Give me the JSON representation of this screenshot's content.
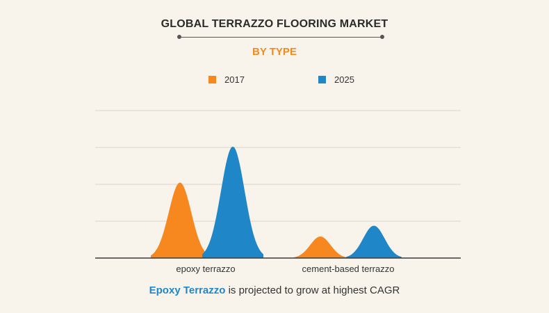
{
  "chart_data": {
    "type": "area",
    "title": "GLOBAL TERRAZZO FLOORING  MARKET",
    "subtitle": "BY TYPE",
    "categories": [
      "epoxy terrazzo",
      "cement-based terrazzo"
    ],
    "series": [
      {
        "name": "2017",
        "color": "#f7881f",
        "values": [
          4.2,
          1.2
        ]
      },
      {
        "name": "2025",
        "color": "#1f86c8",
        "values": [
          6.2,
          1.8
        ]
      }
    ],
    "ylim": [
      0,
      8.2
    ],
    "grid": true,
    "legend": "top-center",
    "xlabel": "",
    "ylabel": ""
  },
  "caption": {
    "highlight": "Epoxy Terrazzo",
    "rest": " is projected to grow at highest CAGR"
  }
}
